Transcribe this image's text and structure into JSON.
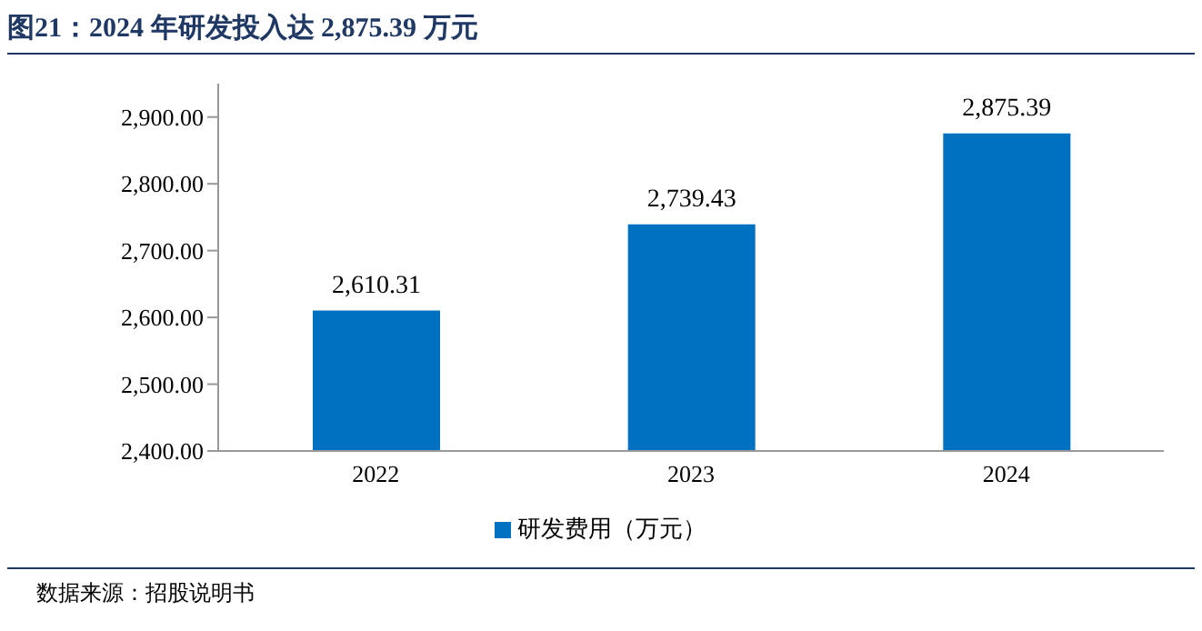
{
  "chart_data": {
    "type": "bar",
    "title": "图21：2024 年研发投入达 2,875.39 万元",
    "categories": [
      "2022",
      "2023",
      "2024"
    ],
    "series": [
      {
        "name": "研发费用（万元）",
        "color": "#0070c0",
        "values": [
          2610.31,
          2739.43,
          2875.39
        ],
        "value_labels": [
          "2,610.31",
          "2,739.43",
          "2,875.39"
        ]
      }
    ],
    "ylim": [
      2400,
      2950
    ],
    "yticks": [
      {
        "value": 2400,
        "label": "2,400.00"
      },
      {
        "value": 2500,
        "label": "2,500.00"
      },
      {
        "value": 2600,
        "label": "2,600.00"
      },
      {
        "value": 2700,
        "label": "2,700.00"
      },
      {
        "value": 2800,
        "label": "2,800.00"
      },
      {
        "value": 2900,
        "label": "2,900.00"
      }
    ],
    "grid": false,
    "legend": "bottom",
    "annotations": [
      "数据来源：招股说明书"
    ]
  }
}
